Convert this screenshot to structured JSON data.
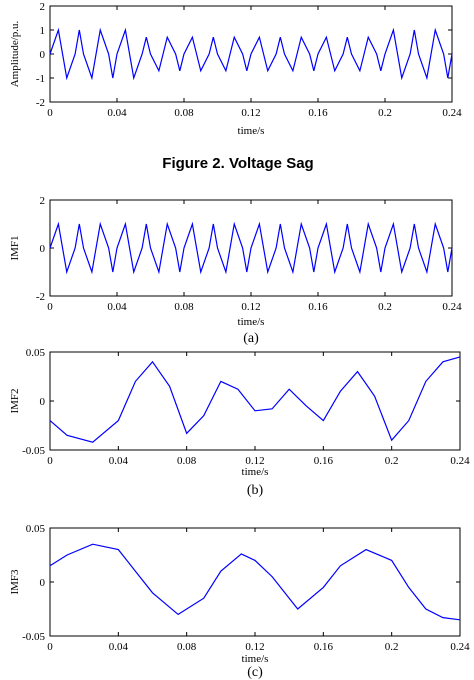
{
  "figure_caption": "Figure 2. Voltage Sag",
  "chart_data": [
    {
      "type": "line",
      "ylabel": "Amplitude/p.u.",
      "xlabel": "time/s",
      "sublabel": "",
      "xlim": [
        0,
        0.24
      ],
      "ylim": [
        -2,
        2
      ],
      "xticks": [
        "0",
        "0.04",
        "0.08",
        "0.12",
        "0.16",
        "0.2",
        "0.24"
      ],
      "yticks": [
        "2",
        "1",
        "0",
        "-1",
        "-2"
      ],
      "series": [
        {
          "color": "#0000ff",
          "x": [
            0,
            0.005,
            0.0075,
            0.01,
            0.015,
            0.0175,
            0.02,
            0.025,
            0.0275,
            0.03,
            0.035,
            0.0375,
            0.04,
            0.045,
            0.0475,
            0.05,
            0.055,
            0.0575,
            0.06,
            0.065,
            0.0675,
            0.07,
            0.075,
            0.0775,
            0.08,
            0.085,
            0.0875,
            0.09,
            0.095,
            0.0975,
            0.1,
            0.105,
            0.1075,
            0.11,
            0.115,
            0.1175,
            0.12,
            0.125,
            0.1275,
            0.13,
            0.135,
            0.1375,
            0.14,
            0.145,
            0.1475,
            0.15,
            0.155,
            0.1575,
            0.16,
            0.165,
            0.1675,
            0.17,
            0.175,
            0.1775,
            0.18,
            0.185,
            0.1875,
            0.19,
            0.195,
            0.1975,
            0.2,
            0.205,
            0.2075,
            0.21,
            0.215,
            0.2175,
            0.22,
            0.225,
            0.2275,
            0.23,
            0.235,
            0.2375,
            0.24
          ],
          "y": [
            0,
            1,
            0,
            -1,
            0,
            1,
            0,
            -1,
            0,
            1,
            0,
            -1,
            0,
            1,
            0,
            -1,
            0,
            0.7,
            0,
            -0.7,
            0,
            0.7,
            0,
            -0.7,
            0,
            0.7,
            0,
            -0.7,
            0,
            0.7,
            0,
            -0.7,
            0,
            0.7,
            0,
            -0.7,
            0,
            0.7,
            0,
            -0.7,
            0,
            0.7,
            0,
            -0.7,
            0,
            0.7,
            0,
            -0.7,
            0,
            0.7,
            0,
            -0.7,
            0,
            0.7,
            0,
            -0.7,
            0,
            0.7,
            0,
            -0.7,
            0,
            1,
            0,
            -1,
            0,
            1,
            0,
            -1,
            0,
            1,
            0,
            -1,
            0
          ]
        }
      ]
    },
    {
      "type": "line",
      "ylabel": "IMF1",
      "xlabel": "time/s",
      "sublabel": "(a)",
      "xlim": [
        0,
        0.24
      ],
      "ylim": [
        -2,
        2
      ],
      "xticks": [
        "0",
        "0.04",
        "0.08",
        "0.12",
        "0.16",
        "0.2",
        "0.24"
      ],
      "yticks": [
        "2",
        "0",
        "-2"
      ],
      "series": [
        {
          "color": "#0000ff",
          "x": [
            0,
            0.005,
            0.0075,
            0.01,
            0.015,
            0.0175,
            0.02,
            0.025,
            0.0275,
            0.03,
            0.035,
            0.0375,
            0.04,
            0.045,
            0.0475,
            0.05,
            0.055,
            0.0575,
            0.06,
            0.065,
            0.0675,
            0.07,
            0.075,
            0.0775,
            0.08,
            0.085,
            0.0875,
            0.09,
            0.095,
            0.0975,
            0.1,
            0.105,
            0.1075,
            0.11,
            0.115,
            0.1175,
            0.12,
            0.125,
            0.1275,
            0.13,
            0.135,
            0.1375,
            0.14,
            0.145,
            0.1475,
            0.15,
            0.155,
            0.1575,
            0.16,
            0.165,
            0.1675,
            0.17,
            0.175,
            0.1775,
            0.18,
            0.185,
            0.1875,
            0.19,
            0.195,
            0.1975,
            0.2,
            0.205,
            0.2075,
            0.21,
            0.215,
            0.2175,
            0.22,
            0.225,
            0.2275,
            0.23,
            0.235,
            0.2375,
            0.24
          ],
          "y": [
            0,
            1,
            0,
            -1,
            0,
            1,
            0,
            -1,
            0,
            1,
            0,
            -1,
            0,
            1,
            0,
            -1,
            0,
            1,
            0,
            -1,
            0,
            1,
            0,
            -1,
            0,
            1,
            0,
            -1,
            0,
            1,
            0,
            -1,
            0,
            1,
            0,
            -1,
            0,
            1,
            0,
            -1,
            0,
            1,
            0,
            -1,
            0,
            1,
            0,
            -1,
            0,
            1,
            0,
            -1,
            0,
            1,
            0,
            -1,
            0,
            1,
            0,
            -1,
            0,
            1,
            0,
            -1,
            0,
            1,
            0,
            -1,
            0,
            1,
            0,
            -1,
            0
          ]
        }
      ]
    },
    {
      "type": "line",
      "ylabel": "IMF2",
      "xlabel": "time/s",
      "sublabel": "(b)",
      "xlim": [
        0,
        0.24
      ],
      "ylim": [
        -0.05,
        0.05
      ],
      "xticks": [
        "0",
        "0.04",
        "0.08",
        "0.12",
        "0.16",
        "0.2",
        "0.24"
      ],
      "yticks": [
        "0.05",
        "0",
        "-0.05"
      ],
      "series": [
        {
          "color": "#0000ff",
          "x": [
            0,
            0.01,
            0.025,
            0.04,
            0.05,
            0.06,
            0.07,
            0.08,
            0.09,
            0.1,
            0.11,
            0.12,
            0.13,
            0.14,
            0.15,
            0.16,
            0.17,
            0.18,
            0.19,
            0.2,
            0.21,
            0.22,
            0.23,
            0.24
          ],
          "y": [
            -0.02,
            -0.035,
            -0.042,
            -0.02,
            0.02,
            0.04,
            0.015,
            -0.033,
            -0.015,
            0.02,
            0.012,
            -0.01,
            -0.008,
            0.012,
            -0.005,
            -0.02,
            0.01,
            0.03,
            0.005,
            -0.04,
            -0.02,
            0.02,
            0.04,
            0.045
          ]
        }
      ]
    },
    {
      "type": "line",
      "ylabel": "IMF3",
      "xlabel": "time/s",
      "sublabel": "(c)",
      "xlim": [
        0,
        0.24
      ],
      "ylim": [
        -0.05,
        0.05
      ],
      "xticks": [
        "0",
        "0.04",
        "0.08",
        "0.12",
        "0.16",
        "0.2",
        "0.24"
      ],
      "yticks": [
        "0.05",
        "0",
        "-0.05"
      ],
      "series": [
        {
          "color": "#0000ff",
          "x": [
            0,
            0.01,
            0.025,
            0.04,
            0.05,
            0.06,
            0.075,
            0.09,
            0.1,
            0.112,
            0.12,
            0.13,
            0.145,
            0.16,
            0.17,
            0.185,
            0.2,
            0.21,
            0.22,
            0.23,
            0.24
          ],
          "y": [
            0.015,
            0.025,
            0.035,
            0.03,
            0.01,
            -0.01,
            -0.03,
            -0.015,
            0.01,
            0.026,
            0.02,
            0.005,
            -0.025,
            -0.005,
            0.015,
            0.03,
            0.02,
            -0.005,
            -0.025,
            -0.033,
            -0.035
          ]
        }
      ]
    }
  ]
}
